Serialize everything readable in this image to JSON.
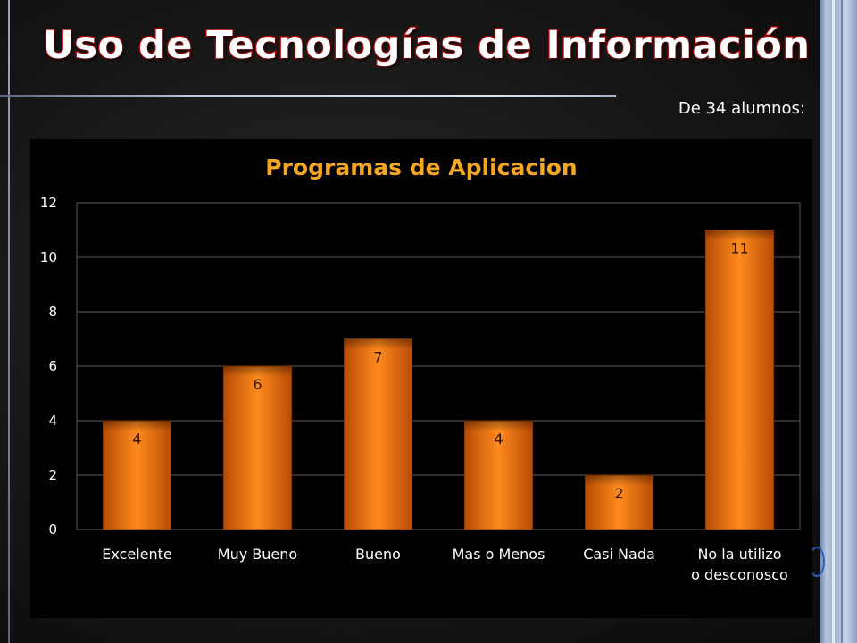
{
  "slide": {
    "title": "Uso de Tecnologías de Información",
    "subtitle": "De 34 alumnos:"
  },
  "colors": {
    "bar_light": "#ff8a1e",
    "bar_dark": "#b84c05",
    "title_color": "#f5a623",
    "title_outline": "#c00000"
  },
  "chart_data": {
    "type": "bar",
    "title": "Programas de Aplicacion",
    "xlabel": "",
    "ylabel": "",
    "categories": [
      "Excelente",
      "Muy Bueno",
      "Bueno",
      "Mas o Menos",
      "Casi Nada",
      "No la utilizo o desconosco"
    ],
    "values": [
      4,
      6,
      7,
      4,
      2,
      11
    ],
    "ylim": [
      0,
      12
    ],
    "yticks": [
      0,
      2,
      4,
      6,
      8,
      10,
      12
    ],
    "grid": true,
    "legend": "none",
    "data_labels": true
  }
}
